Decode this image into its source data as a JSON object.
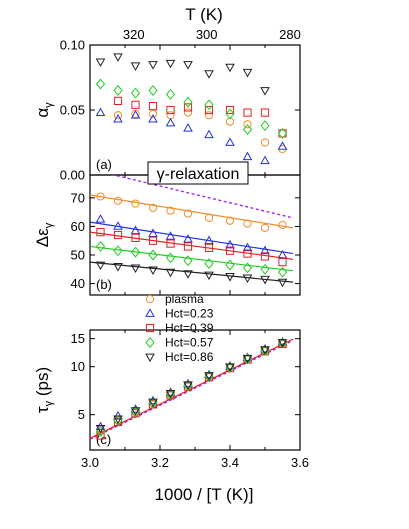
{
  "colors": {
    "plasma": "#f28c28",
    "hct023": "#2233dd",
    "hct039": "#e02020",
    "hct057": "#22cc22",
    "hct086": "#222222",
    "dashed": "#a020f0"
  },
  "chart_data": {
    "type": "scatter",
    "title": "γ-relaxation",
    "x": {
      "label": "1000 / [T (K)]",
      "range": [
        3.0,
        3.6
      ],
      "ticks": [
        "3.0",
        "3.2",
        "3.4",
        "3.6"
      ]
    },
    "top_axis": {
      "label": "T (K)",
      "ticks": [
        "280",
        "300",
        "320"
      ],
      "tick_values": [
        280,
        300,
        320
      ]
    },
    "legend": [
      {
        "series": "plasma",
        "label": "plasma",
        "marker": "circle"
      },
      {
        "series": "hct023",
        "label": "Hct=0.23",
        "marker": "triangle-up"
      },
      {
        "series": "hct039",
        "label": "Hct=0.39",
        "marker": "square"
      },
      {
        "series": "hct057",
        "label": "Hct=0.57",
        "marker": "diamond"
      },
      {
        "series": "hct086",
        "label": "Hct=0.86",
        "marker": "triangle-down"
      }
    ],
    "panels": [
      {
        "id": "a",
        "tag": "(a)",
        "y_label": "α",
        "y_sub": "γ",
        "y_range": [
          0.0,
          0.1
        ],
        "y_ticks": [
          0.0,
          0.05,
          0.1
        ],
        "y_tick_labels": [
          "0.00",
          "0.05",
          "0.10"
        ],
        "series": {
          "plasma": [
            [
              3.08,
              0.046
            ],
            [
              3.13,
              0.047
            ],
            [
              3.18,
              0.047
            ],
            [
              3.23,
              0.046
            ],
            [
              3.28,
              0.048
            ],
            [
              3.34,
              0.046
            ],
            [
              3.4,
              0.041
            ],
            [
              3.45,
              0.039
            ],
            [
              3.5,
              0.025
            ],
            [
              3.55,
              0.02
            ]
          ],
          "hct023": [
            [
              3.03,
              0.048
            ],
            [
              3.08,
              0.043
            ],
            [
              3.13,
              0.046
            ],
            [
              3.18,
              0.043
            ],
            [
              3.23,
              0.04
            ],
            [
              3.28,
              0.036
            ],
            [
              3.34,
              0.031
            ],
            [
              3.4,
              0.025
            ],
            [
              3.45,
              0.014
            ],
            [
              3.5,
              0.011
            ],
            [
              3.55,
              0.022
            ]
          ],
          "hct039": [
            [
              3.08,
              0.057
            ],
            [
              3.13,
              0.054
            ],
            [
              3.18,
              0.053
            ],
            [
              3.23,
              0.05
            ],
            [
              3.28,
              0.052
            ],
            [
              3.34,
              0.05
            ],
            [
              3.4,
              0.05
            ],
            [
              3.45,
              0.048
            ],
            [
              3.5,
              0.048
            ],
            [
              3.55,
              0.032
            ]
          ],
          "hct057": [
            [
              3.03,
              0.07
            ],
            [
              3.08,
              0.065
            ],
            [
              3.13,
              0.063
            ],
            [
              3.18,
              0.065
            ],
            [
              3.23,
              0.062
            ],
            [
              3.28,
              0.056
            ],
            [
              3.34,
              0.054
            ],
            [
              3.4,
              0.047
            ],
            [
              3.45,
              0.035
            ],
            [
              3.5,
              0.038
            ],
            [
              3.55,
              0.032
            ]
          ],
          "hct086": [
            [
              3.03,
              0.087
            ],
            [
              3.08,
              0.091
            ],
            [
              3.13,
              0.084
            ],
            [
              3.18,
              0.085
            ],
            [
              3.23,
              0.086
            ],
            [
              3.28,
              0.085
            ],
            [
              3.34,
              0.078
            ],
            [
              3.4,
              0.083
            ],
            [
              3.45,
              0.079
            ],
            [
              3.5,
              0.065
            ]
          ]
        }
      },
      {
        "id": "b",
        "tag": "(b)",
        "y_label": "Δε",
        "y_sub": "γ",
        "y_range": [
          36,
          78
        ],
        "y_ticks": [
          40,
          50,
          60,
          70
        ],
        "y_tick_labels": [
          "40",
          "50",
          "60",
          "70"
        ],
        "series": {
          "plasma": [
            [
              3.03,
              70.5
            ],
            [
              3.08,
              69.0
            ],
            [
              3.13,
              68.0
            ],
            [
              3.18,
              66.5
            ],
            [
              3.23,
              65.5
            ],
            [
              3.28,
              64.5
            ],
            [
              3.34,
              63.0
            ],
            [
              3.4,
              62.0
            ],
            [
              3.45,
              61.0
            ],
            [
              3.5,
              59.5
            ],
            [
              3.55,
              60.5
            ]
          ],
          "hct023": [
            [
              3.03,
              62.5
            ],
            [
              3.08,
              60.0
            ],
            [
              3.13,
              58.5
            ],
            [
              3.18,
              57.5
            ],
            [
              3.23,
              56.5
            ],
            [
              3.28,
              55.5
            ],
            [
              3.34,
              55.0
            ],
            [
              3.4,
              53.5
            ],
            [
              3.45,
              52.5
            ],
            [
              3.5,
              51.5
            ],
            [
              3.55,
              50.0
            ]
          ],
          "hct039": [
            [
              3.03,
              58.0
            ],
            [
              3.08,
              57.0
            ],
            [
              3.13,
              56.0
            ],
            [
              3.18,
              55.0
            ],
            [
              3.23,
              54.0
            ],
            [
              3.28,
              53.0
            ],
            [
              3.34,
              52.5
            ],
            [
              3.4,
              51.5
            ],
            [
              3.45,
              50.5
            ],
            [
              3.5,
              49.5
            ],
            [
              3.55,
              47.5
            ]
          ],
          "hct057": [
            [
              3.03,
              53.0
            ],
            [
              3.08,
              51.5
            ],
            [
              3.13,
              51.0
            ],
            [
              3.18,
              50.0
            ],
            [
              3.23,
              49.0
            ],
            [
              3.28,
              48.0
            ],
            [
              3.34,
              47.0
            ],
            [
              3.4,
              46.5
            ],
            [
              3.45,
              45.5
            ],
            [
              3.5,
              45.0
            ],
            [
              3.55,
              44.0
            ]
          ],
          "hct086": [
            [
              3.03,
              46.5
            ],
            [
              3.08,
              46.0
            ],
            [
              3.13,
              45.5
            ],
            [
              3.18,
              44.8
            ],
            [
              3.23,
              44.0
            ],
            [
              3.28,
              43.5
            ],
            [
              3.34,
              43.0
            ],
            [
              3.4,
              42.5
            ],
            [
              3.45,
              42.0
            ],
            [
              3.5,
              41.5
            ],
            [
              3.55,
              40.5
            ]
          ]
        },
        "fit_lines": {
          "plasma": [
            [
              3.0,
              71.0
            ],
            [
              3.58,
              59.5
            ]
          ],
          "hct023": [
            [
              3.0,
              61.5
            ],
            [
              3.58,
              50.5
            ]
          ],
          "hct039": [
            [
              3.0,
              58.0
            ],
            [
              3.58,
              48.5
            ]
          ],
          "hct057": [
            [
              3.0,
              53.0
            ],
            [
              3.58,
              44.5
            ]
          ],
          "hct086": [
            [
              3.0,
              47.5
            ],
            [
              3.58,
              40.5
            ]
          ]
        },
        "dashed_line": [
          [
            3.0,
            80.0
          ],
          [
            3.58,
            63.0
          ]
        ]
      },
      {
        "id": "c",
        "tag": "(c)",
        "y_label": "τ",
        "y_sub": "γ",
        "y_unit": " (ps)",
        "y_scale": "log",
        "y_range": [
          3.0,
          17.0
        ],
        "y_ticks": [
          5,
          10,
          15
        ],
        "y_tick_labels": [
          "5",
          "10",
          "15"
        ],
        "series": {
          "plasma": [
            [
              3.03,
              4.0
            ],
            [
              3.08,
              4.6
            ],
            [
              3.13,
              5.2
            ],
            [
              3.18,
              5.9
            ],
            [
              3.23,
              6.7
            ],
            [
              3.28,
              7.6
            ],
            [
              3.34,
              8.7
            ],
            [
              3.4,
              9.9
            ],
            [
              3.45,
              11.2
            ],
            [
              3.5,
              12.6
            ],
            [
              3.55,
              14.0
            ]
          ],
          "hct023": [
            [
              3.03,
              4.2
            ],
            [
              3.08,
              4.9
            ],
            [
              3.13,
              5.4
            ],
            [
              3.18,
              6.1
            ],
            [
              3.23,
              6.9
            ],
            [
              3.28,
              7.8
            ],
            [
              3.34,
              8.9
            ],
            [
              3.4,
              10.1
            ],
            [
              3.45,
              11.4
            ],
            [
              3.5,
              12.9
            ],
            [
              3.55,
              14.3
            ]
          ],
          "hct039": [
            [
              3.03,
              3.7
            ],
            [
              3.08,
              4.5
            ],
            [
              3.13,
              5.1
            ],
            [
              3.18,
              5.8
            ],
            [
              3.23,
              6.6
            ],
            [
              3.28,
              7.5
            ],
            [
              3.34,
              8.6
            ],
            [
              3.4,
              9.8
            ],
            [
              3.45,
              11.1
            ],
            [
              3.5,
              12.5
            ],
            [
              3.55,
              13.9
            ]
          ],
          "hct057": [
            [
              3.03,
              3.9
            ],
            [
              3.08,
              4.6
            ],
            [
              3.13,
              5.2
            ],
            [
              3.18,
              5.9
            ],
            [
              3.23,
              6.7
            ],
            [
              3.28,
              7.6
            ],
            [
              3.34,
              8.7
            ],
            [
              3.4,
              9.9
            ],
            [
              3.45,
              11.2
            ],
            [
              3.5,
              12.6
            ],
            [
              3.55,
              14.1
            ]
          ],
          "hct086": [
            [
              3.03,
              4.1
            ],
            [
              3.08,
              4.7
            ],
            [
              3.13,
              5.3
            ],
            [
              3.18,
              6.0
            ],
            [
              3.23,
              6.8
            ],
            [
              3.28,
              7.7
            ],
            [
              3.34,
              8.8
            ],
            [
              3.4,
              10.0
            ],
            [
              3.45,
              11.3
            ],
            [
              3.5,
              12.8
            ],
            [
              3.55,
              14.2
            ]
          ]
        },
        "fit_lines": {
          "hct039": [
            [
              3.0,
              3.55
            ],
            [
              3.58,
              14.9
            ]
          ]
        },
        "dashed_line": [
          [
            3.0,
            3.5
          ],
          [
            3.58,
            14.6
          ]
        ]
      }
    ]
  }
}
